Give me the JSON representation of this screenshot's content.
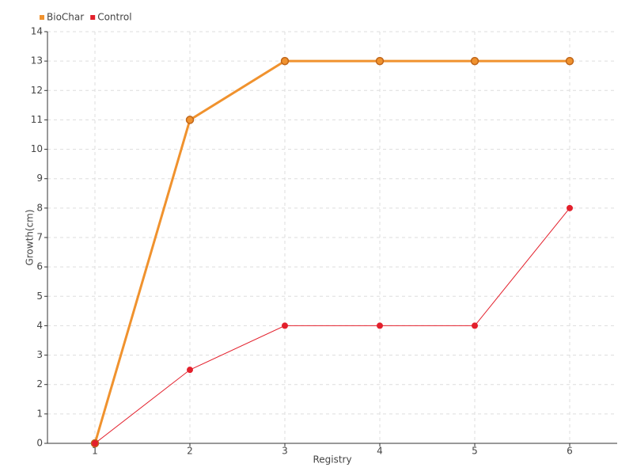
{
  "chart_data": {
    "type": "line",
    "x_label": "Registry",
    "y_label": "Growth(cm)",
    "x": [
      1,
      2,
      3,
      4,
      5,
      6
    ],
    "xlim": [
      0.5,
      6.5
    ],
    "xticks": [
      1,
      2,
      3,
      4,
      5,
      6
    ],
    "ylim": [
      0,
      14
    ],
    "yticks": [
      0,
      1,
      2,
      3,
      4,
      5,
      6,
      7,
      8,
      9,
      10,
      11,
      12,
      13,
      14
    ],
    "grid": true,
    "legend": "top-left",
    "series": [
      {
        "name": "BioChar",
        "color": "#f0922e",
        "values": [
          0,
          11,
          13,
          13,
          13,
          13
        ]
      },
      {
        "name": "Control",
        "color": "#e3202c",
        "values": [
          0,
          2.5,
          4,
          4,
          4,
          8
        ]
      }
    ]
  }
}
